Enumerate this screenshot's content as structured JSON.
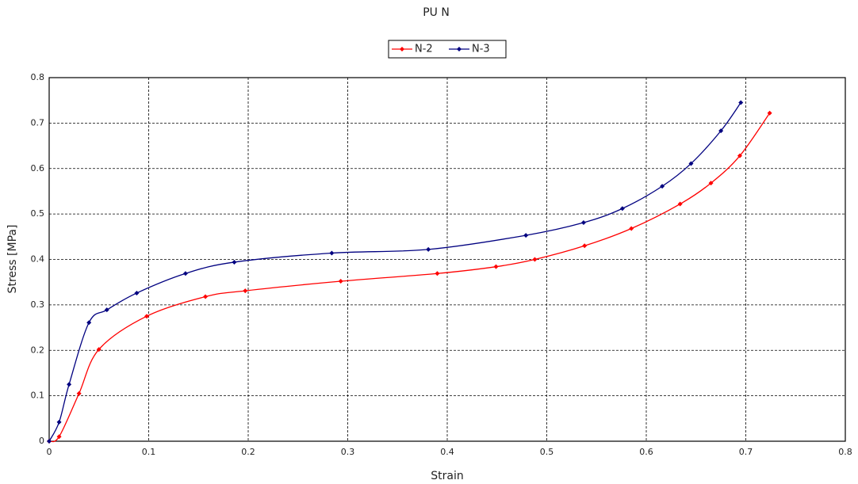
{
  "chart_data": {
    "type": "line",
    "title": "PU N",
    "x_label": "Strain",
    "y_label": "Stress [MPa]",
    "xlim": [
      0,
      0.8
    ],
    "ylim": [
      0,
      0.8
    ],
    "xticks": [
      0,
      0.1,
      0.2,
      0.3,
      0.4,
      0.5,
      0.6,
      0.7,
      0.8
    ],
    "yticks": [
      0,
      0.1,
      0.2,
      0.3,
      0.4,
      0.5,
      0.6,
      0.7,
      0.8
    ],
    "grid": true,
    "legend": "top",
    "series": [
      {
        "name": "N-2",
        "color": "#ff0000",
        "x": [
          0,
          0.01,
          0.03,
          0.05,
          0.098,
          0.157,
          0.197,
          0.293,
          0.39,
          0.449,
          0.488,
          0.538,
          0.585,
          0.634,
          0.665,
          0.694,
          0.724
        ],
        "values": [
          0,
          0.01,
          0.105,
          0.202,
          0.275,
          0.318,
          0.331,
          0.352,
          0.369,
          0.384,
          0.4,
          0.43,
          0.468,
          0.522,
          0.568,
          0.628,
          0.722
        ]
      },
      {
        "name": "N-3",
        "color": "#000080",
        "x": [
          0,
          0.01,
          0.02,
          0.04,
          0.058,
          0.088,
          0.137,
          0.186,
          0.284,
          0.381,
          0.479,
          0.537,
          0.576,
          0.616,
          0.645,
          0.675,
          0.695
        ],
        "values": [
          0,
          0.042,
          0.125,
          0.261,
          0.289,
          0.326,
          0.369,
          0.394,
          0.414,
          0.422,
          0.453,
          0.481,
          0.512,
          0.561,
          0.611,
          0.683,
          0.745
        ]
      }
    ]
  }
}
